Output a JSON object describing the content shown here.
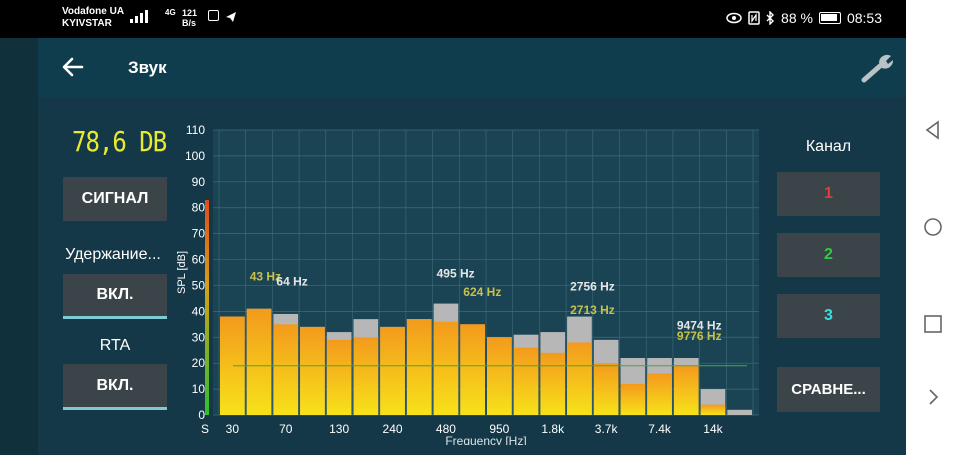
{
  "status": {
    "carrier1": "Vodafone UA",
    "carrier2": "KYIVSTAR",
    "net": "4G",
    "speed_value": "121",
    "speed_unit": "B/s",
    "battery": "88 %",
    "time": "08:53"
  },
  "appbar": {
    "title": "Звук",
    "back_icon": "arrow-left-icon",
    "settings_icon": "wrench-icon"
  },
  "left": {
    "level": "78,6 DB",
    "signal_button": "СИГНАЛ",
    "hold_label": "Удержание...",
    "hold_button": "ВКЛ.",
    "rta_label": "RTA",
    "rta_button": "ВКЛ."
  },
  "right": {
    "channel_label": "Канал",
    "channels": [
      {
        "label": "1",
        "color": "#e53935"
      },
      {
        "label": "2",
        "color": "#2ecc40"
      },
      {
        "label": "3",
        "color": "#33e0e0"
      }
    ],
    "compare_button": "СРАВНЕ..."
  },
  "chart_data": {
    "type": "bar",
    "ylabel": "SPL [dB]",
    "xlabel": "Frequency [Hz]",
    "ylim": [
      0,
      110
    ],
    "yticks": [
      "0",
      "10",
      "20",
      "30",
      "40",
      "50",
      "60",
      "70",
      "80",
      "90",
      "100",
      "110"
    ],
    "xtick_labels": [
      "S",
      "30",
      "70",
      "130",
      "240",
      "480",
      "950",
      "1.8k",
      "3.7k",
      "7.4k",
      "14k"
    ],
    "level_meter_value": 83,
    "reference_line": 19,
    "series": [
      {
        "values": [
          38,
          41,
          35,
          34,
          29,
          30,
          34,
          37,
          36,
          35,
          30,
          26,
          24,
          28,
          20,
          12,
          16,
          19,
          4,
          0
        ]
      },
      {
        "values": [
          38,
          41,
          39,
          34,
          32,
          37,
          34,
          37,
          43,
          35,
          30,
          31,
          32,
          38,
          29,
          22,
          22,
          22,
          10,
          2
        ]
      }
    ],
    "annotations": [
      {
        "text": "43 Hz",
        "color": "gold",
        "x_band": 1,
        "y": 52
      },
      {
        "text": "64 Hz",
        "color": "white",
        "x_band": 2,
        "y": 50
      },
      {
        "text": "495 Hz",
        "color": "white",
        "x_band": 8,
        "y": 53
      },
      {
        "text": "624 Hz",
        "color": "gold",
        "x_band": 9,
        "y": 46
      },
      {
        "text": "2756 Hz",
        "color": "white",
        "x_band": 13,
        "y": 48
      },
      {
        "text": "2713 Hz",
        "color": "gold",
        "x_band": 13,
        "y": 39
      },
      {
        "text": "9474 Hz",
        "color": "white",
        "x_band": 17,
        "y": 33
      },
      {
        "text": "9776 Hz",
        "color": "gold",
        "x_band": 17,
        "y": 29
      }
    ]
  }
}
